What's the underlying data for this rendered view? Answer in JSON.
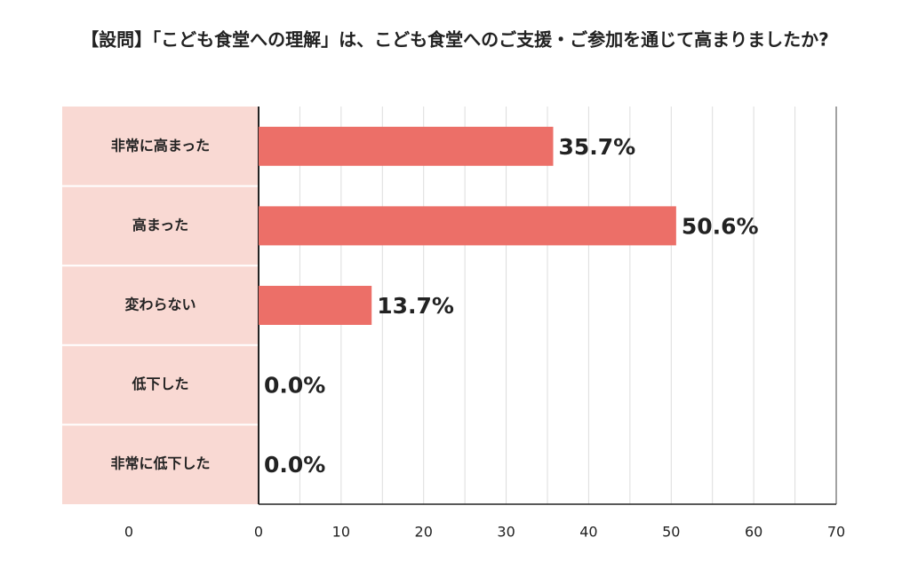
{
  "chart_data": {
    "type": "hbar",
    "title": "【設問】「こども食堂への理解」は、こども食堂へのご支援・ご参加を通じて高まりましたか?",
    "categories": [
      "非常に高まった",
      "高まった",
      "変わらない",
      "低下した",
      "非常に低下した"
    ],
    "values": [
      35.7,
      50.6,
      13.7,
      0.0,
      0.0
    ],
    "value_labels": [
      "35.7%",
      "50.6%",
      "13.7%",
      "0.0%",
      "0.0%"
    ],
    "color": "#ec6f68",
    "category_panel_color": "#f9d9d3",
    "category_axis_label": "0",
    "xlim": [
      0,
      70
    ],
    "xticks": [
      0,
      10,
      20,
      30,
      40,
      50,
      60,
      70
    ],
    "xminor": [
      5,
      15,
      25,
      35,
      45,
      55,
      65
    ],
    "grid": true
  }
}
